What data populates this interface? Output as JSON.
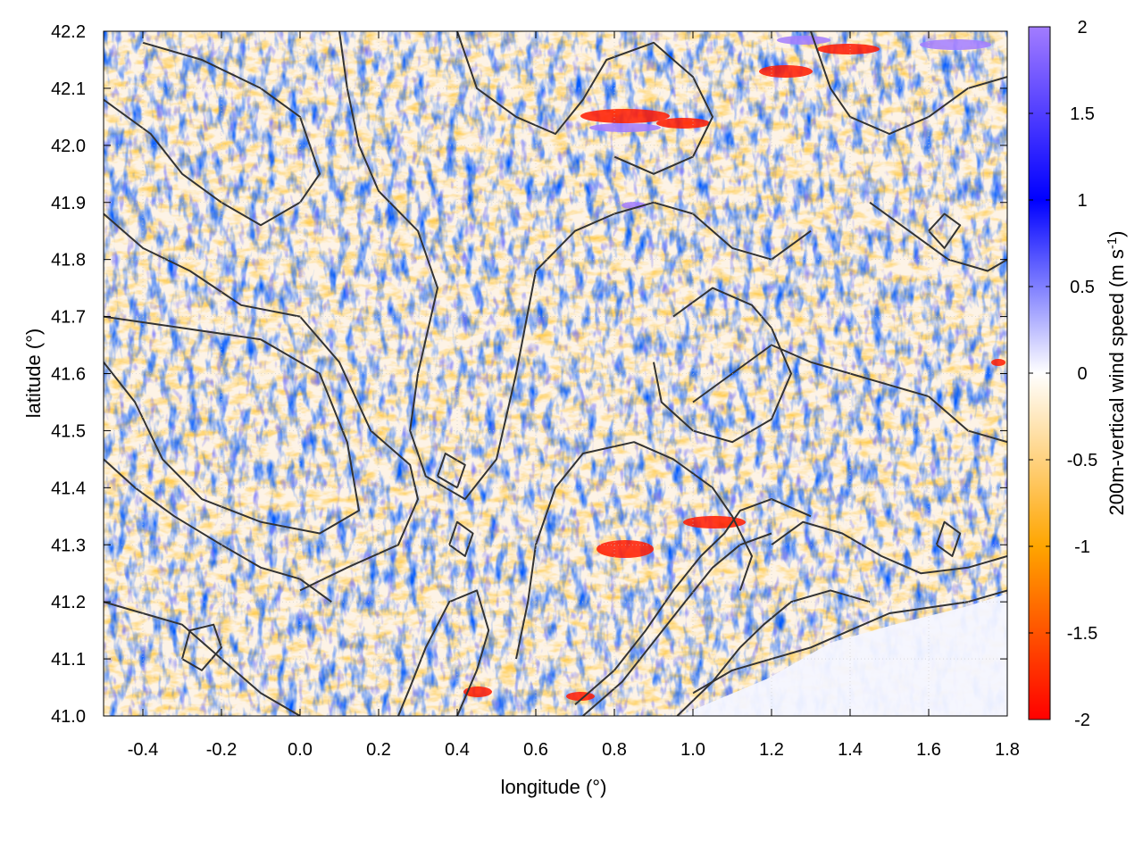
{
  "chart_data": {
    "type": "heatmap",
    "xlabel": "longitude (°)",
    "ylabel": "latitude (°)",
    "colorbar_label_main": "200m-vertical wind speed (m s",
    "colorbar_label_sup": "-1",
    "colorbar_label_close": ")",
    "xlim": [
      -0.5,
      1.8
    ],
    "ylim": [
      41.0,
      42.2
    ],
    "clim": [
      -2,
      2
    ],
    "x_ticks": [
      -0.4,
      -0.2,
      0.0,
      0.2,
      0.4,
      0.6,
      0.8,
      1.0,
      1.2,
      1.4,
      1.6,
      1.8
    ],
    "x_tick_labels": [
      "-0.4",
      "-0.2",
      "0.0",
      "0.2",
      "0.4",
      "0.6",
      "0.8",
      "1.0",
      "1.2",
      "1.4",
      "1.6",
      "1.8"
    ],
    "y_ticks": [
      41.0,
      41.1,
      41.2,
      41.3,
      41.4,
      41.5,
      41.6,
      41.7,
      41.8,
      41.9,
      42.0,
      42.1,
      42.2
    ],
    "y_tick_labels": [
      "41.0",
      "41.1",
      "41.2",
      "41.3",
      "41.4",
      "41.5",
      "41.6",
      "41.7",
      "41.8",
      "41.9",
      "42.0",
      "42.1",
      "42.2"
    ],
    "colorbar_ticks": [
      -2,
      -1.5,
      -1,
      -0.5,
      0,
      0.5,
      1,
      1.5,
      2
    ],
    "colorbar_tick_labels": [
      "-2",
      "-1.5",
      "-1",
      "-0.5",
      "0",
      "0.5",
      "1",
      "1.5",
      "2"
    ],
    "colormap": [
      {
        "value": -2,
        "color": "#ff0000"
      },
      {
        "value": -1,
        "color": "#ffa500"
      },
      {
        "value": 0,
        "color": "#ffffff"
      },
      {
        "value": 1,
        "color": "#0000ff"
      },
      {
        "value": 2,
        "color": "#a27cff"
      }
    ],
    "contour_color": "#333333",
    "grid": true,
    "contours": [
      [
        [
          -0.5,
          41.2
        ],
        [
          -0.4,
          41.18
        ],
        [
          -0.3,
          41.16
        ],
        [
          -0.2,
          41.1
        ],
        [
          -0.1,
          41.04
        ],
        [
          0.0,
          41.0
        ]
      ],
      [
        [
          -0.5,
          41.62
        ],
        [
          -0.42,
          41.55
        ],
        [
          -0.35,
          41.45
        ],
        [
          -0.25,
          41.38
        ],
        [
          -0.1,
          41.34
        ],
        [
          0.05,
          41.32
        ],
        [
          0.15,
          41.36
        ],
        [
          0.12,
          41.48
        ],
        [
          0.05,
          41.6
        ],
        [
          -0.1,
          41.66
        ],
        [
          -0.3,
          41.68
        ],
        [
          -0.5,
          41.7
        ]
      ],
      [
        [
          -0.5,
          41.88
        ],
        [
          -0.4,
          41.82
        ],
        [
          -0.28,
          41.78
        ],
        [
          -0.15,
          41.72
        ],
        [
          0.0,
          41.7
        ],
        [
          0.1,
          41.62
        ],
        [
          0.18,
          41.5
        ],
        [
          0.28,
          41.44
        ],
        [
          0.3,
          41.38
        ],
        [
          0.25,
          41.3
        ],
        [
          0.12,
          41.26
        ],
        [
          0.0,
          41.22
        ]
      ],
      [
        [
          -0.5,
          42.08
        ],
        [
          -0.38,
          42.02
        ],
        [
          -0.3,
          41.95
        ],
        [
          -0.2,
          41.9
        ],
        [
          -0.1,
          41.86
        ],
        [
          0.0,
          41.9
        ],
        [
          0.05,
          41.95
        ],
        [
          0.0,
          42.05
        ],
        [
          -0.1,
          42.1
        ],
        [
          -0.25,
          42.15
        ],
        [
          -0.4,
          42.18
        ]
      ],
      [
        [
          0.1,
          42.2
        ],
        [
          0.12,
          42.1
        ],
        [
          0.15,
          42.0
        ],
        [
          0.2,
          41.92
        ],
        [
          0.3,
          41.85
        ],
        [
          0.35,
          41.75
        ],
        [
          0.3,
          41.6
        ],
        [
          0.28,
          41.5
        ],
        [
          0.32,
          41.42
        ],
        [
          0.42,
          41.38
        ],
        [
          0.5,
          41.45
        ],
        [
          0.55,
          41.6
        ],
        [
          0.6,
          41.78
        ],
        [
          0.7,
          41.85
        ],
        [
          0.8,
          41.88
        ],
        [
          0.9,
          41.9
        ],
        [
          1.0,
          41.88
        ],
        [
          1.1,
          41.82
        ],
        [
          1.2,
          41.8
        ],
        [
          1.3,
          41.85
        ]
      ],
      [
        [
          0.4,
          41.0
        ],
        [
          0.45,
          41.08
        ],
        [
          0.48,
          41.15
        ],
        [
          0.45,
          41.22
        ],
        [
          0.38,
          41.2
        ],
        [
          0.32,
          41.12
        ],
        [
          0.28,
          41.05
        ],
        [
          0.25,
          41.0
        ]
      ],
      [
        [
          0.55,
          41.1
        ],
        [
          0.58,
          41.2
        ],
        [
          0.6,
          41.3
        ],
        [
          0.65,
          41.4
        ],
        [
          0.72,
          41.46
        ],
        [
          0.85,
          41.48
        ],
        [
          0.95,
          41.45
        ],
        [
          1.05,
          41.4
        ],
        [
          1.1,
          41.35
        ],
        [
          1.15,
          41.28
        ],
        [
          1.12,
          41.22
        ]
      ],
      [
        [
          0.7,
          41.02
        ],
        [
          0.8,
          41.08
        ],
        [
          0.88,
          41.15
        ],
        [
          0.95,
          41.22
        ],
        [
          1.02,
          41.28
        ],
        [
          1.08,
          41.32
        ],
        [
          1.12,
          41.36
        ],
        [
          1.2,
          41.38
        ],
        [
          1.3,
          41.35
        ]
      ],
      [
        [
          0.72,
          41.0
        ],
        [
          0.82,
          41.06
        ],
        [
          0.9,
          41.13
        ],
        [
          0.98,
          41.2
        ],
        [
          1.05,
          41.26
        ],
        [
          1.12,
          41.3
        ],
        [
          1.2,
          41.32
        ]
      ],
      [
        [
          0.96,
          41.0
        ],
        [
          1.05,
          41.06
        ],
        [
          1.12,
          41.12
        ],
        [
          1.18,
          41.16
        ],
        [
          1.25,
          41.2
        ],
        [
          1.35,
          41.22
        ],
        [
          1.45,
          41.2
        ]
      ],
      [
        [
          1.2,
          41.3
        ],
        [
          1.28,
          41.34
        ],
        [
          1.38,
          41.32
        ],
        [
          1.48,
          41.28
        ],
        [
          1.58,
          41.25
        ],
        [
          1.7,
          41.26
        ],
        [
          1.8,
          41.28
        ]
      ],
      [
        [
          1.0,
          41.04
        ],
        [
          1.1,
          41.08
        ],
        [
          1.2,
          41.1
        ],
        [
          1.3,
          41.12
        ],
        [
          1.4,
          41.15
        ],
        [
          1.5,
          41.18
        ],
        [
          1.6,
          41.19
        ],
        [
          1.7,
          41.2
        ],
        [
          1.8,
          41.22
        ]
      ],
      [
        [
          1.0,
          41.55
        ],
        [
          1.1,
          41.6
        ],
        [
          1.2,
          41.65
        ],
        [
          1.3,
          41.62
        ],
        [
          1.4,
          41.6
        ],
        [
          1.5,
          41.58
        ],
        [
          1.6,
          41.56
        ],
        [
          1.7,
          41.5
        ],
        [
          1.8,
          41.48
        ]
      ],
      [
        [
          0.95,
          41.7
        ],
        [
          1.05,
          41.75
        ],
        [
          1.15,
          41.72
        ],
        [
          1.2,
          41.68
        ],
        [
          1.25,
          41.6
        ],
        [
          1.2,
          41.52
        ],
        [
          1.1,
          41.48
        ],
        [
          1.0,
          41.5
        ],
        [
          0.92,
          41.55
        ],
        [
          0.9,
          41.62
        ]
      ],
      [
        [
          0.4,
          42.2
        ],
        [
          0.45,
          42.1
        ],
        [
          0.55,
          42.05
        ],
        [
          0.65,
          42.02
        ],
        [
          0.72,
          42.08
        ],
        [
          0.78,
          42.15
        ],
        [
          0.9,
          42.18
        ],
        [
          1.0,
          42.12
        ],
        [
          1.05,
          42.05
        ],
        [
          1.0,
          41.98
        ],
        [
          0.9,
          41.95
        ],
        [
          0.8,
          41.98
        ]
      ],
      [
        [
          1.3,
          42.2
        ],
        [
          1.35,
          42.1
        ],
        [
          1.4,
          42.05
        ],
        [
          1.5,
          42.02
        ],
        [
          1.6,
          42.05
        ],
        [
          1.7,
          42.1
        ],
        [
          1.8,
          42.12
        ]
      ],
      [
        [
          1.45,
          41.9
        ],
        [
          1.55,
          41.85
        ],
        [
          1.65,
          41.8
        ],
        [
          1.75,
          41.78
        ],
        [
          1.8,
          41.8
        ]
      ],
      [
        [
          -0.5,
          41.45
        ],
        [
          -0.42,
          41.4
        ],
        [
          -0.32,
          41.35
        ],
        [
          -0.2,
          41.3
        ],
        [
          -0.1,
          41.26
        ],
        [
          0.0,
          41.24
        ],
        [
          0.08,
          41.2
        ]
      ],
      [
        [
          -0.3,
          41.1
        ],
        [
          -0.25,
          41.08
        ],
        [
          -0.2,
          41.12
        ],
        [
          -0.22,
          41.16
        ],
        [
          -0.28,
          41.15
        ],
        [
          -0.3,
          41.1
        ]
      ],
      [
        [
          0.38,
          41.3
        ],
        [
          0.42,
          41.28
        ],
        [
          0.44,
          41.32
        ],
        [
          0.4,
          41.34
        ],
        [
          0.38,
          41.3
        ]
      ],
      [
        [
          0.35,
          41.42
        ],
        [
          0.4,
          41.4
        ],
        [
          0.42,
          41.44
        ],
        [
          0.37,
          41.46
        ],
        [
          0.35,
          41.42
        ]
      ],
      [
        [
          1.62,
          41.3
        ],
        [
          1.66,
          41.28
        ],
        [
          1.68,
          41.32
        ],
        [
          1.64,
          41.34
        ],
        [
          1.62,
          41.3
        ]
      ],
      [
        [
          1.6,
          41.85
        ],
        [
          1.64,
          41.82
        ],
        [
          1.68,
          41.86
        ],
        [
          1.64,
          41.88
        ],
        [
          1.6,
          41.85
        ]
      ]
    ]
  }
}
